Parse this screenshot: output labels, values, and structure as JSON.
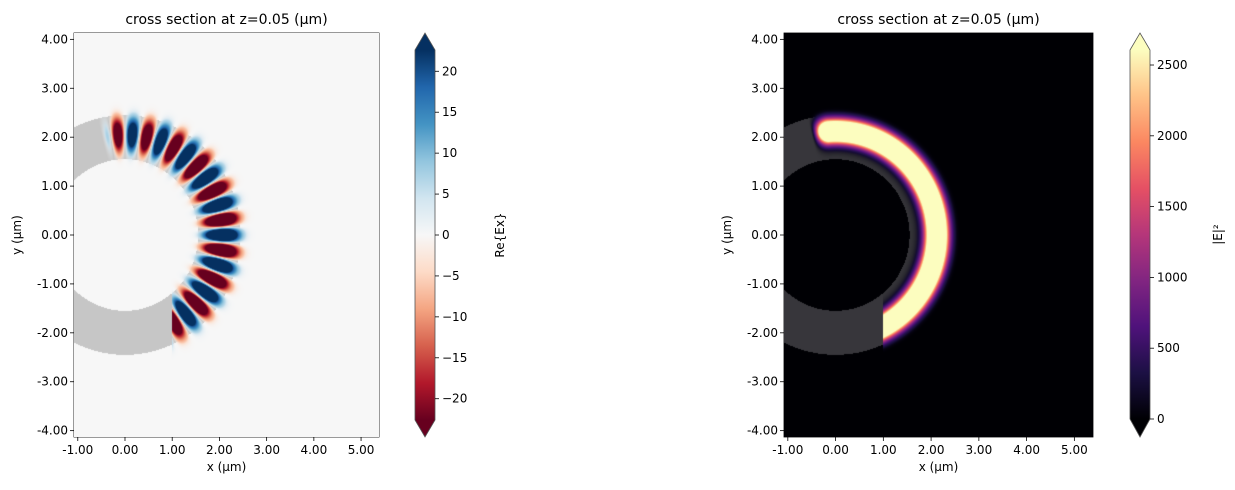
{
  "chart_data": [
    {
      "type": "heatmap",
      "title": "cross section at z=0.05 (µm)",
      "xlabel": "x (µm)",
      "ylabel": "y (µm)",
      "xlim": [
        -1.08,
        5.38
      ],
      "ylim": [
        -4.13,
        4.13
      ],
      "xticks": [
        -1,
        0,
        1,
        2,
        3,
        4,
        5
      ],
      "xtick_labels": [
        "-1.00",
        "0.00",
        "1.00",
        "2.00",
        "3.00",
        "4.00",
        "5.00"
      ],
      "yticks": [
        4,
        3,
        2,
        1,
        0,
        -1,
        -2,
        -3,
        -4
      ],
      "ytick_labels": [
        "4.00",
        "3.00",
        "2.00",
        "1.00",
        "0.00",
        "-1.00",
        "-2.00",
        "-3.00",
        "-4.00"
      ],
      "field": "Re{Ex}",
      "colormap": "RdBu",
      "colormap_stops": [
        "#67001f",
        "#b2182b",
        "#d6604d",
        "#f4a582",
        "#fddbc7",
        "#f7f7f7",
        "#d1e5f0",
        "#92c5de",
        "#4393c3",
        "#2166ac",
        "#053061"
      ],
      "structure_color": "#c6c6c6",
      "background_color": "#f7f7f7",
      "colorbar": {
        "label": "Re{Ex}",
        "range": [
          -22.6,
          22.6
        ],
        "extend": "both",
        "ticks": [
          20,
          15,
          10,
          5,
          0,
          -5,
          -10,
          -15,
          -20
        ],
        "tick_labels": [
          "20",
          "15",
          "10",
          "5",
          "0",
          "−5",
          "−10",
          "−15",
          "−20"
        ]
      },
      "structure": {
        "shape": "ring",
        "center": [
          0,
          0
        ],
        "inner_radius": 1.55,
        "outer_radius": 2.45
      }
    },
    {
      "type": "heatmap",
      "title": "cross section at z=0.05 (µm)",
      "xlabel": "x (µm)",
      "ylabel": "y (µm)",
      "xlim": [
        -1.08,
        5.39
      ],
      "ylim": [
        -4.13,
        4.13
      ],
      "xticks": [
        -1,
        0,
        1,
        2,
        3,
        4,
        5
      ],
      "xtick_labels": [
        "-1.00",
        "0.00",
        "1.00",
        "2.00",
        "3.00",
        "4.00",
        "5.00"
      ],
      "yticks": [
        4,
        3,
        2,
        1,
        0,
        -1,
        -2,
        -3,
        -4
      ],
      "ytick_labels": [
        "4.00",
        "3.00",
        "2.00",
        "1.00",
        "0.00",
        "-1.00",
        "-2.00",
        "-3.00",
        "-4.00"
      ],
      "field": "|E|²",
      "colormap": "magma",
      "colormap_stops": [
        "#000004",
        "#1c1044",
        "#4f127b",
        "#812581",
        "#b5367a",
        "#e55064",
        "#fb8761",
        "#fec287",
        "#fcfdbf"
      ],
      "structure_color": "#37363b",
      "background_color": "#000004",
      "colorbar": {
        "label": "|E|²",
        "range": [
          0,
          2606
        ],
        "extend": "both",
        "ticks": [
          2500,
          2000,
          1500,
          1000,
          500,
          0
        ],
        "tick_labels": [
          "2500",
          "2000",
          "1500",
          "1000",
          "500",
          "0"
        ]
      },
      "structure": {
        "shape": "ring",
        "center": [
          0,
          0
        ],
        "inner_radius": 1.55,
        "outer_radius": 2.45
      }
    }
  ]
}
